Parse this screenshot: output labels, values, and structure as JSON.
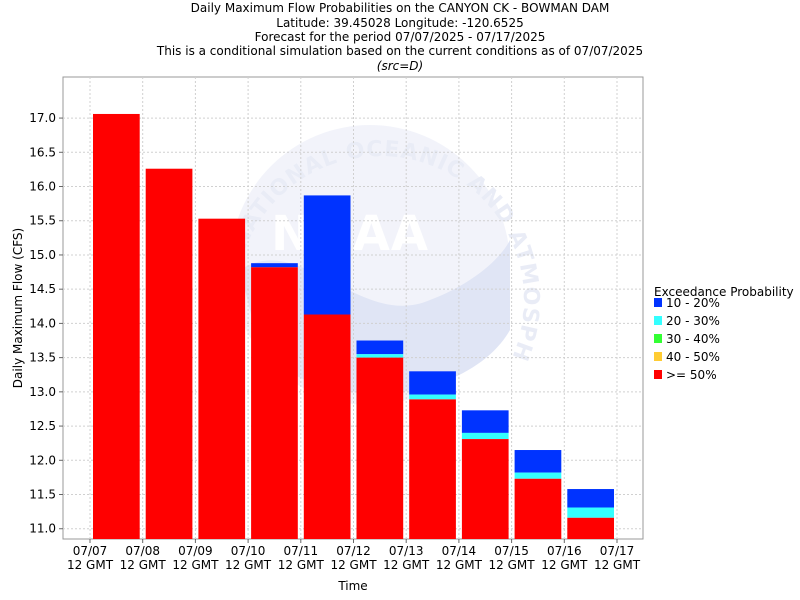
{
  "chart_data": {
    "type": "bar",
    "stacked": true,
    "title_lines": [
      "Daily Maximum Flow Probabilities on the CANYON CK - BOWMAN DAM",
      "Latitude: 39.45028 Longitude: -120.6525",
      "Forecast for the period 07/07/2025 - 07/17/2025",
      "This is a conditional simulation based on the current conditions as of 07/07/2025"
    ],
    "subtitle": "(src=D)",
    "xlabel": "Time",
    "ylabel": "Daily Maximum Flow (CFS)",
    "ylim": [
      10.85,
      17.6
    ],
    "yticks": [
      11.0,
      11.5,
      12.0,
      12.5,
      13.0,
      13.5,
      14.0,
      14.5,
      15.0,
      15.5,
      16.0,
      16.5,
      17.0
    ],
    "xticks": [
      {
        "date": "07/07",
        "time": "12 GMT"
      },
      {
        "date": "07/08",
        "time": "12 GMT"
      },
      {
        "date": "07/09",
        "time": "12 GMT"
      },
      {
        "date": "07/10",
        "time": "12 GMT"
      },
      {
        "date": "07/11",
        "time": "12 GMT"
      },
      {
        "date": "07/12",
        "time": "12 GMT"
      },
      {
        "date": "07/13",
        "time": "12 GMT"
      },
      {
        "date": "07/14",
        "time": "12 GMT"
      },
      {
        "date": "07/15",
        "time": "12 GMT"
      },
      {
        "date": "07/16",
        "time": "12 GMT"
      },
      {
        "date": "07/17",
        "time": "12 GMT"
      }
    ],
    "grid": true,
    "legend_title": "Exceedance Probability",
    "legend_position": "right",
    "series": [
      {
        "name": "10 - 20%",
        "color": "#0033ff"
      },
      {
        "name": "20 - 30%",
        "color": "#33ffff"
      },
      {
        "name": "30 - 40%",
        "color": "#33ff33"
      },
      {
        "name": "40 - 50%",
        "color": "#ffcc33"
      },
      {
        "name": ">= 50%",
        "color": "#ff0000"
      }
    ],
    "bars": [
      {
        "period": "07/07 - 07/08",
        "ge50": 17.06,
        "p40_50": 17.06,
        "p30_40": 17.06,
        "p20_30": 17.06,
        "p10_20": 17.06
      },
      {
        "period": "07/08 - 07/09",
        "ge50": 16.26,
        "p40_50": 16.26,
        "p30_40": 16.26,
        "p20_30": 16.26,
        "p10_20": 16.26
      },
      {
        "period": "07/09 - 07/10",
        "ge50": 15.53,
        "p40_50": 15.53,
        "p30_40": 15.53,
        "p20_30": 15.53,
        "p10_20": 15.53
      },
      {
        "period": "07/10 - 07/11",
        "ge50": 14.82,
        "p40_50": 14.82,
        "p30_40": 14.82,
        "p20_30": 14.82,
        "p10_20": 14.88
      },
      {
        "period": "07/11 - 07/12",
        "ge50": 14.13,
        "p40_50": 14.13,
        "p30_40": 14.13,
        "p20_30": 14.13,
        "p10_20": 15.87
      },
      {
        "period": "07/12 - 07/13",
        "ge50": 13.5,
        "p40_50": 13.5,
        "p30_40": 13.5,
        "p20_30": 13.55,
        "p10_20": 13.75
      },
      {
        "period": "07/13 - 07/14",
        "ge50": 12.89,
        "p40_50": 12.89,
        "p30_40": 12.89,
        "p20_30": 12.96,
        "p10_20": 13.3
      },
      {
        "period": "07/14 - 07/15",
        "ge50": 12.31,
        "p40_50": 12.31,
        "p30_40": 12.31,
        "p20_30": 12.4,
        "p10_20": 12.73
      },
      {
        "period": "07/15 - 07/16",
        "ge50": 11.73,
        "p40_50": 11.73,
        "p30_40": 11.73,
        "p20_30": 11.82,
        "p10_20": 12.15
      },
      {
        "period": "07/16 - 07/17",
        "ge50": 11.16,
        "p40_50": 11.16,
        "p30_40": 11.16,
        "p20_30": 11.31,
        "p10_20": 11.58
      }
    ],
    "watermark": {
      "icon": "noaa-logo-watermark",
      "text": "NOAA",
      "ring_text": "NATIONAL OCEANIC AND ATMOSPHERIC ADMINISTRATION"
    }
  }
}
